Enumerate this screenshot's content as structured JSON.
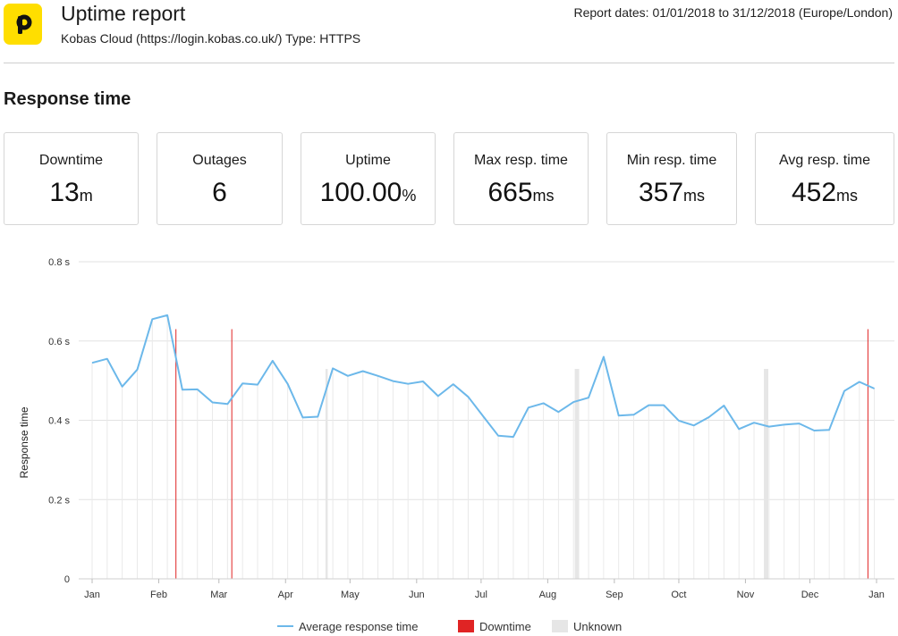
{
  "header": {
    "title": "Uptime report",
    "subtitle": "Kobas Cloud (https://login.kobas.co.uk/) Type: HTTPS",
    "report_dates": "Report dates: 01/01/2018 to 31/12/2018 (Europe/London)",
    "logo_icon": "p-logo-icon",
    "logo_color": "#ffde00"
  },
  "section": {
    "title": "Response time"
  },
  "cards": [
    {
      "label": "Downtime",
      "value": "13",
      "unit": "m"
    },
    {
      "label": "Outages",
      "value": "6",
      "unit": ""
    },
    {
      "label": "Uptime",
      "value": "100.00",
      "unit": "%"
    },
    {
      "label": "Max resp. time",
      "value": "665",
      "unit": "ms"
    },
    {
      "label": "Min resp. time",
      "value": "357",
      "unit": "ms"
    },
    {
      "label": "Avg resp. time",
      "value": "452",
      "unit": "ms"
    }
  ],
  "legend": {
    "average": "Average response time",
    "downtime": "Downtime",
    "unknown": "Unknown"
  },
  "colors": {
    "line": "#6cb8ea",
    "downtime": "#e02424",
    "unknown": "#e6e6e6",
    "grid": "#e2e2e2"
  },
  "chart_data": {
    "type": "line",
    "title": "",
    "xlabel": "",
    "ylabel": "Response time",
    "x_range": [
      "2018-01-01",
      "2018-12-31"
    ],
    "ylim": [
      0,
      0.8
    ],
    "y_ticks": [
      0,
      0.2,
      0.4,
      0.6,
      0.8
    ],
    "y_tick_labels": [
      "0",
      "0.2 s",
      "0.4 s",
      "0.6 s",
      "0.8 s"
    ],
    "x_ticks": [
      {
        "date": "2018-01-01",
        "label": "Jan"
      },
      {
        "date": "2018-02-01",
        "label": "Feb"
      },
      {
        "date": "2018-03-01",
        "label": "Mar"
      },
      {
        "date": "2018-04-01",
        "label": "Apr"
      },
      {
        "date": "2018-05-01",
        "label": "May"
      },
      {
        "date": "2018-06-01",
        "label": "Jun"
      },
      {
        "date": "2018-07-01",
        "label": "Jul"
      },
      {
        "date": "2018-08-01",
        "label": "Aug"
      },
      {
        "date": "2018-09-01",
        "label": "Sep"
      },
      {
        "date": "2018-10-01",
        "label": "Oct"
      },
      {
        "date": "2018-11-01",
        "label": "Nov"
      },
      {
        "date": "2018-12-01",
        "label": "Dec"
      },
      {
        "date": "2019-01-01",
        "label": "Jan"
      }
    ],
    "grid": true,
    "legend_position": "bottom",
    "series": [
      {
        "name": "Average response time",
        "points": [
          [
            "2018-01-01",
            0.545
          ],
          [
            "2018-01-08",
            0.555
          ],
          [
            "2018-01-15",
            0.485
          ],
          [
            "2018-01-22",
            0.528
          ],
          [
            "2018-01-29",
            0.655
          ],
          [
            "2018-02-05",
            0.665
          ],
          [
            "2018-02-12",
            0.477
          ],
          [
            "2018-02-19",
            0.478
          ],
          [
            "2018-02-26",
            0.445
          ],
          [
            "2018-03-05",
            0.441
          ],
          [
            "2018-03-12",
            0.493
          ],
          [
            "2018-03-19",
            0.49
          ],
          [
            "2018-03-26",
            0.55
          ],
          [
            "2018-04-02",
            0.492
          ],
          [
            "2018-04-09",
            0.407
          ],
          [
            "2018-04-16",
            0.409
          ],
          [
            "2018-04-23",
            0.531
          ],
          [
            "2018-04-30",
            0.512
          ],
          [
            "2018-05-07",
            0.524
          ],
          [
            "2018-05-14",
            0.512
          ],
          [
            "2018-05-21",
            0.499
          ],
          [
            "2018-05-28",
            0.492
          ],
          [
            "2018-06-04",
            0.498
          ],
          [
            "2018-06-11",
            0.461
          ],
          [
            "2018-06-18",
            0.491
          ],
          [
            "2018-06-25",
            0.459
          ],
          [
            "2018-07-02",
            0.41
          ],
          [
            "2018-07-09",
            0.361
          ],
          [
            "2018-07-16",
            0.358
          ],
          [
            "2018-07-23",
            0.432
          ],
          [
            "2018-07-30",
            0.443
          ],
          [
            "2018-08-06",
            0.421
          ],
          [
            "2018-08-13",
            0.446
          ],
          [
            "2018-08-20",
            0.457
          ],
          [
            "2018-08-27",
            0.56
          ],
          [
            "2018-09-03",
            0.412
          ],
          [
            "2018-09-10",
            0.414
          ],
          [
            "2018-09-17",
            0.438
          ],
          [
            "2018-09-24",
            0.438
          ],
          [
            "2018-10-01",
            0.399
          ],
          [
            "2018-10-08",
            0.387
          ],
          [
            "2018-10-15",
            0.408
          ],
          [
            "2018-10-22",
            0.437
          ],
          [
            "2018-10-29",
            0.378
          ],
          [
            "2018-11-05",
            0.394
          ],
          [
            "2018-11-12",
            0.384
          ],
          [
            "2018-11-19",
            0.389
          ],
          [
            "2018-11-26",
            0.392
          ],
          [
            "2018-12-03",
            0.374
          ],
          [
            "2018-12-10",
            0.376
          ],
          [
            "2018-12-17",
            0.474
          ],
          [
            "2018-12-24",
            0.497
          ],
          [
            "2018-12-31",
            0.48
          ]
        ]
      },
      {
        "name": "Downtime",
        "dates": [
          "2018-02-09",
          "2018-03-07",
          "2018-12-28"
        ]
      },
      {
        "name": "Unknown",
        "dates": [
          "2018-04-20",
          "2018-08-14",
          "2018-08-15",
          "2018-11-10",
          "2018-11-11"
        ]
      }
    ]
  }
}
